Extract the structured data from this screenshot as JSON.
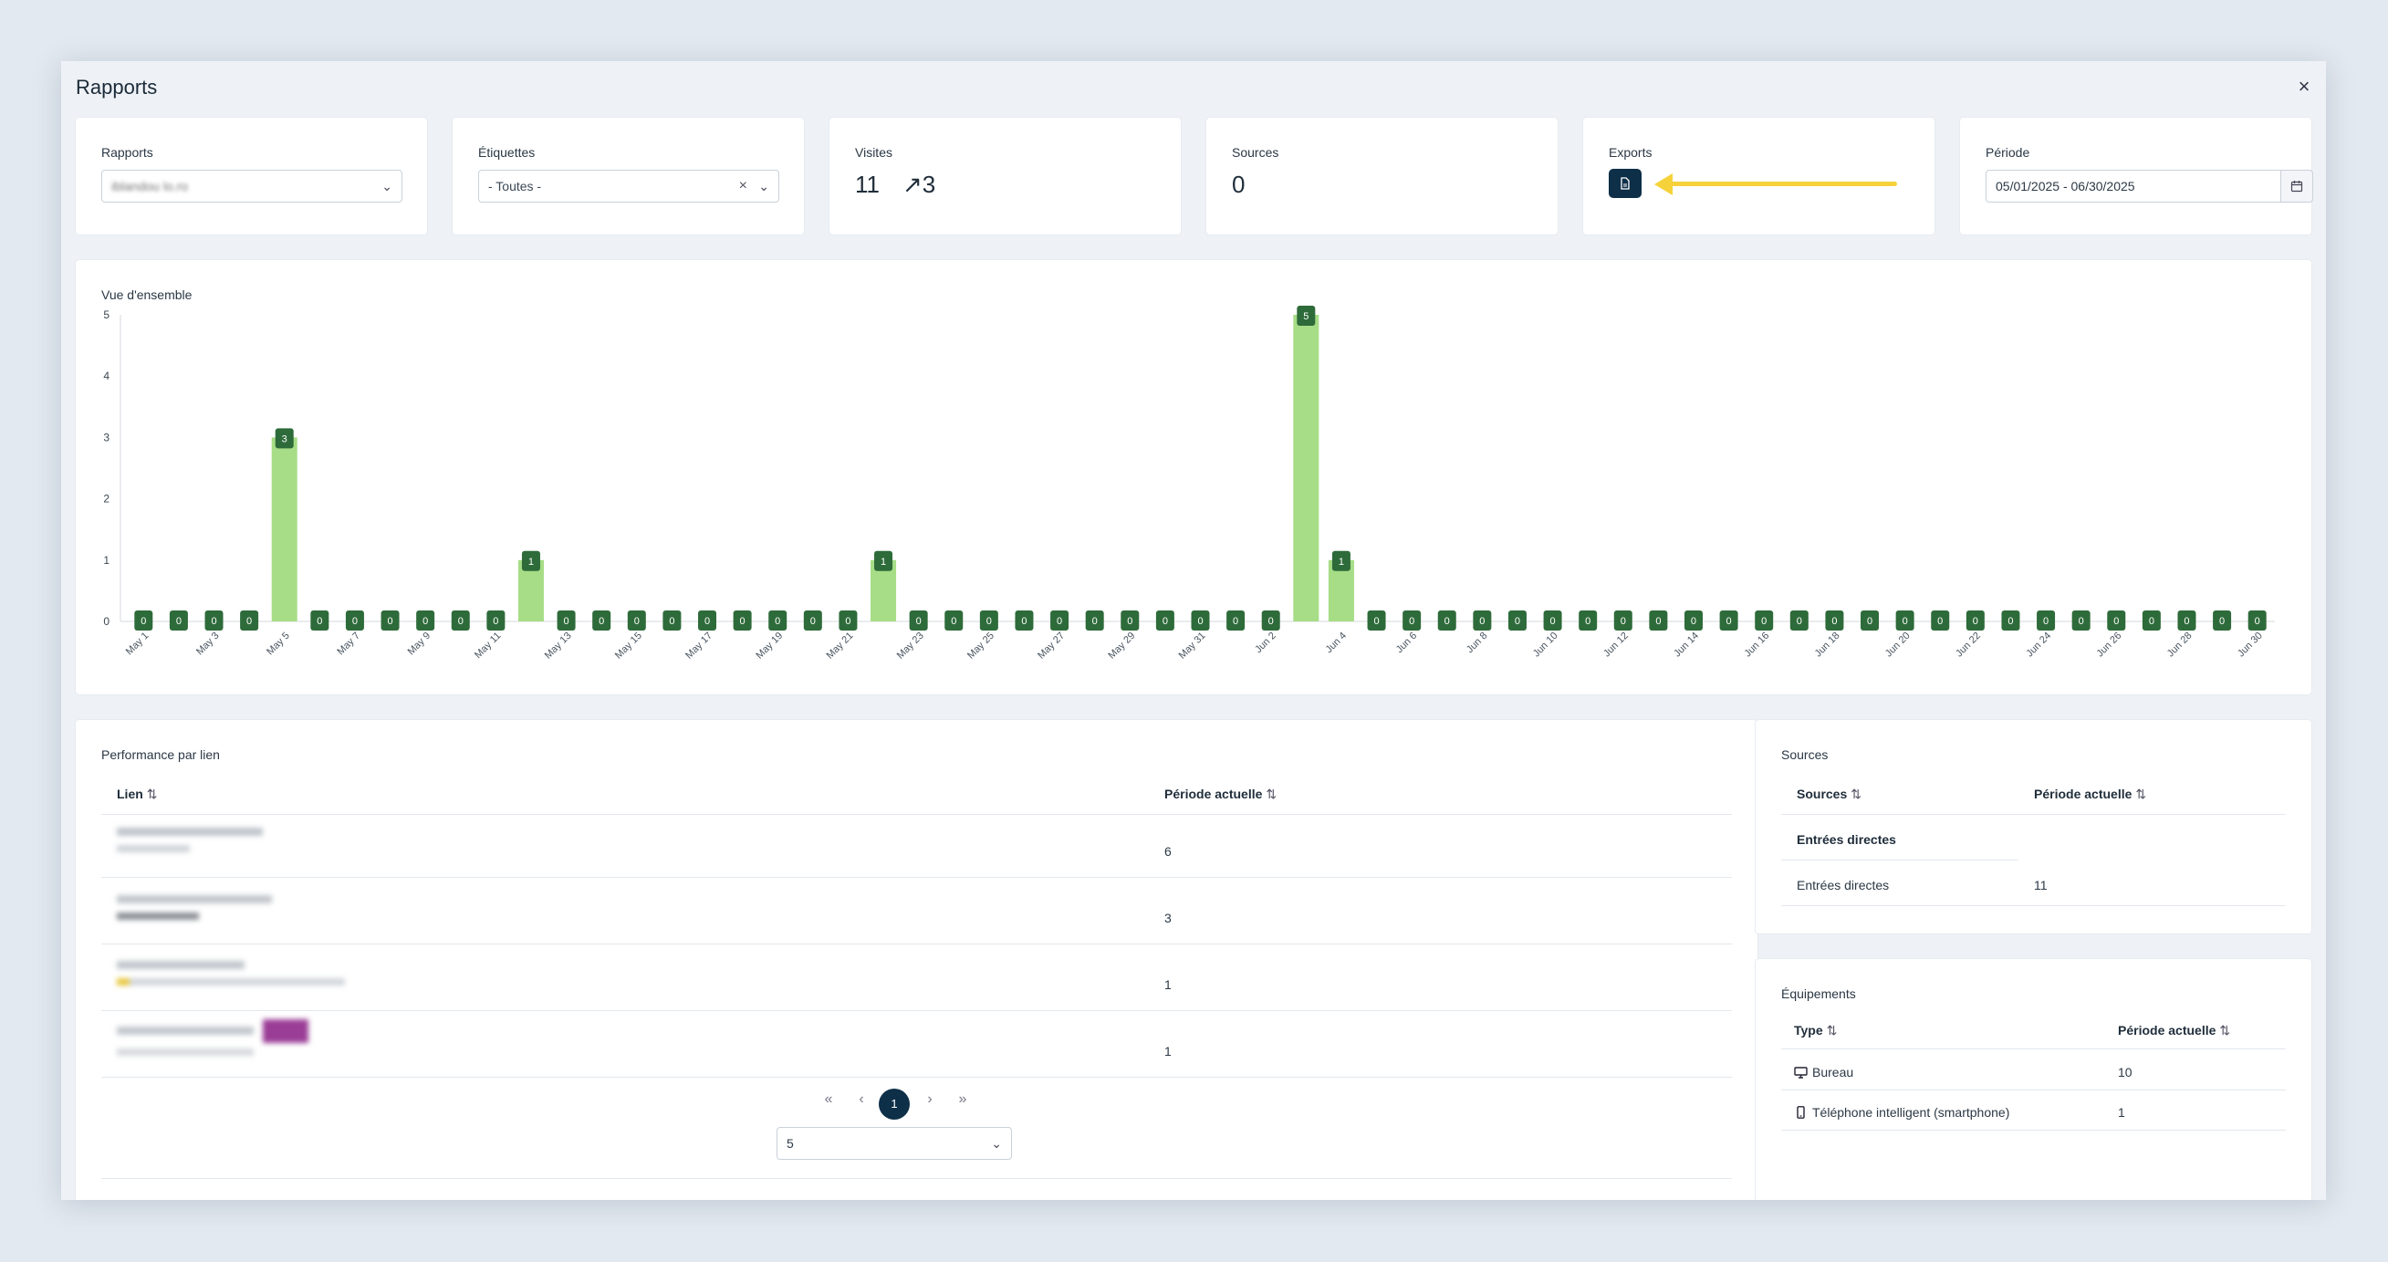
{
  "modal": {
    "title": "Rapports",
    "close": "×"
  },
  "filters": {
    "rapports": {
      "label": "Rapports",
      "value": "iblandou lo.ro",
      "chevron": "⌄"
    },
    "etiquettes": {
      "label": "Étiquettes",
      "value": "- Toutes -",
      "clear": "×",
      "chevron": "⌄"
    },
    "visites": {
      "label": "Visites",
      "value": "11",
      "trend_icon": "↗",
      "trend": "3"
    },
    "sources": {
      "label": "Sources",
      "value": "0"
    },
    "exports": {
      "label": "Exports",
      "button_icon": "document-icon"
    },
    "periode": {
      "label": "Période",
      "value": "05/01/2025 - 06/30/2025",
      "calendar_icon": "calendar-icon"
    }
  },
  "colors": {
    "bar": "#a6dd86",
    "label_bg": "#2e6b3a",
    "accent": "#0e2f48",
    "arrow": "#f6d23a"
  },
  "chart_data": {
    "type": "bar",
    "title": "Vue d'ensemble",
    "ylim": [
      0,
      5
    ],
    "yticks": [
      0,
      1,
      2,
      3,
      4,
      5
    ],
    "grid": false,
    "categories": [
      "May 1",
      "May 2",
      "May 3",
      "May 4",
      "May 5",
      "May 6",
      "May 7",
      "May 8",
      "May 9",
      "May 10",
      "May 11",
      "May 12",
      "May 13",
      "May 14",
      "May 15",
      "May 16",
      "May 17",
      "May 18",
      "May 19",
      "May 20",
      "May 21",
      "May 22",
      "May 23",
      "May 24",
      "May 25",
      "May 26",
      "May 27",
      "May 28",
      "May 29",
      "May 30",
      "May 31",
      "Jun 1",
      "Jun 2",
      "Jun 3",
      "Jun 4",
      "Jun 5",
      "Jun 6",
      "Jun 7",
      "Jun 8",
      "Jun 9",
      "Jun 10",
      "Jun 11",
      "Jun 12",
      "Jun 13",
      "Jun 14",
      "Jun 15",
      "Jun 16",
      "Jun 17",
      "Jun 18",
      "Jun 19",
      "Jun 20",
      "Jun 21",
      "Jun 22",
      "Jun 23",
      "Jun 24",
      "Jun 25",
      "Jun 26",
      "Jun 27",
      "Jun 28",
      "Jun 29",
      "Jun 30"
    ],
    "values": [
      0,
      0,
      0,
      0,
      3,
      0,
      0,
      0,
      0,
      0,
      0,
      1,
      0,
      0,
      0,
      0,
      0,
      0,
      0,
      0,
      0,
      1,
      0,
      0,
      0,
      0,
      0,
      0,
      0,
      0,
      0,
      0,
      0,
      5,
      1,
      0,
      0,
      0,
      0,
      0,
      0,
      0,
      0,
      0,
      0,
      0,
      0,
      0,
      0,
      0,
      0,
      0,
      0,
      0,
      0,
      0,
      0,
      0,
      0,
      0,
      0
    ],
    "xtick_labels": [
      "May 1",
      "May 3",
      "May 5",
      "May 7",
      "May 9",
      "May 11",
      "May 13",
      "May 15",
      "May 17",
      "May 19",
      "May 21",
      "May 23",
      "May 25",
      "May 27",
      "May 29",
      "May 31",
      "Jun 2",
      "Jun 4",
      "Jun 6",
      "Jun 8",
      "Jun 10",
      "Jun 12",
      "Jun 14",
      "Jun 16",
      "Jun 18",
      "Jun 20",
      "Jun 22",
      "Jun 24",
      "Jun 26",
      "Jun 28",
      "Jun 30"
    ]
  },
  "performance": {
    "title": "Performance par lien",
    "col_link": "Lien",
    "col_period": "Période actuelle",
    "sort_icon": "⇅",
    "rows": [
      {
        "value": "6"
      },
      {
        "value": "3"
      },
      {
        "value": "1"
      },
      {
        "value": "1"
      }
    ],
    "pagination": {
      "first": "«",
      "prev": "‹",
      "current": "1",
      "next": "›",
      "last": "»",
      "page_size": "5",
      "chevron": "⌄"
    }
  },
  "sources_table": {
    "title": "Sources",
    "col_source": "Sources",
    "col_period": "Période actuelle",
    "sort_icon": "⇅",
    "group": "Entrées directes",
    "rows": [
      {
        "name": "Entrées directes",
        "value": "11"
      }
    ]
  },
  "equipements": {
    "title": "Équipements",
    "col_type": "Type",
    "col_period": "Période actuelle",
    "sort_icon": "⇅",
    "rows": [
      {
        "icon": "monitor-icon",
        "name": "Bureau",
        "value": "10"
      },
      {
        "icon": "smartphone-icon",
        "name": "Téléphone intelligent (smartphone)",
        "value": "1"
      }
    ]
  }
}
